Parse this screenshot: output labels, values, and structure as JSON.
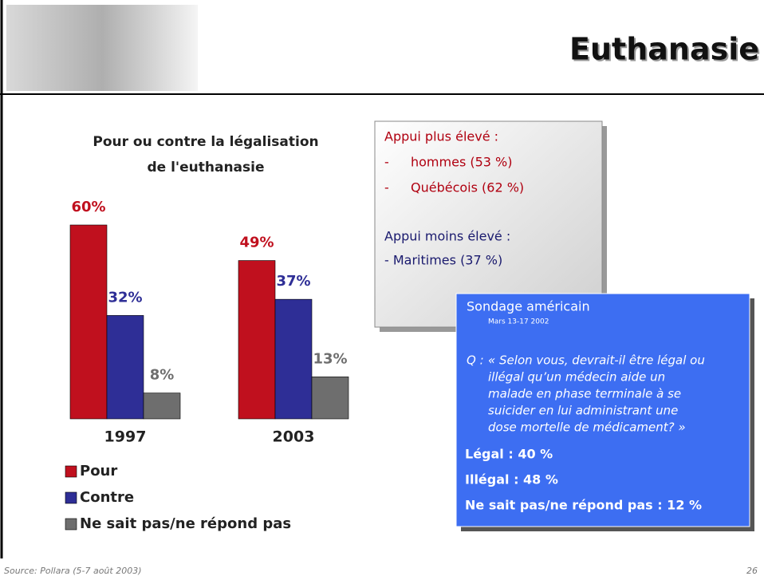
{
  "slide": {
    "title": "Euthanasie",
    "source": "Source: Pollara (5-7 août 2003)",
    "page": "26"
  },
  "chart_data": {
    "type": "bar",
    "title": [
      "Pour ou contre la légalisation",
      "de l'euthanasie"
    ],
    "categories": [
      "1997",
      "2003"
    ],
    "series": [
      {
        "name": "Pour",
        "color": "#c0101e",
        "values": [
          60,
          49
        ],
        "value_labels": [
          "60%",
          "49%"
        ]
      },
      {
        "name": "Contre",
        "color": "#2e2e96",
        "values": [
          32,
          37
        ],
        "value_labels": [
          "32%",
          "37%"
        ]
      },
      {
        "name": "Ne sait pas/ne répond pas",
        "color": "#6e6e6e",
        "values": [
          8,
          13
        ],
        "value_labels": [
          "8%",
          "13%"
        ]
      }
    ]
  },
  "box_support": {
    "higher": "Appui plus élevé :",
    "bullet": "-",
    "higher_items": [
      "hommes (53 %)",
      "Québécois (62 %)"
    ],
    "lower": "Appui moins élevé :",
    "lower_items": [
      "- Maritimes (37 %)"
    ]
  },
  "box_us": {
    "title": "Sondage américain",
    "date": "Mars 13-17 2002",
    "q_prefix": "Q :",
    "question": [
      "« Selon vous, devrait-il être légal ou",
      "illégal qu’un médecin aide un",
      "malade en phase terminale à se",
      "suicider en lui administrant une",
      "dose mortelle de médicament? »"
    ],
    "results": [
      "Légal :  40 %",
      "Illégal :  48 %",
      "Ne sait pas/ne répond pas :  12 %"
    ]
  }
}
